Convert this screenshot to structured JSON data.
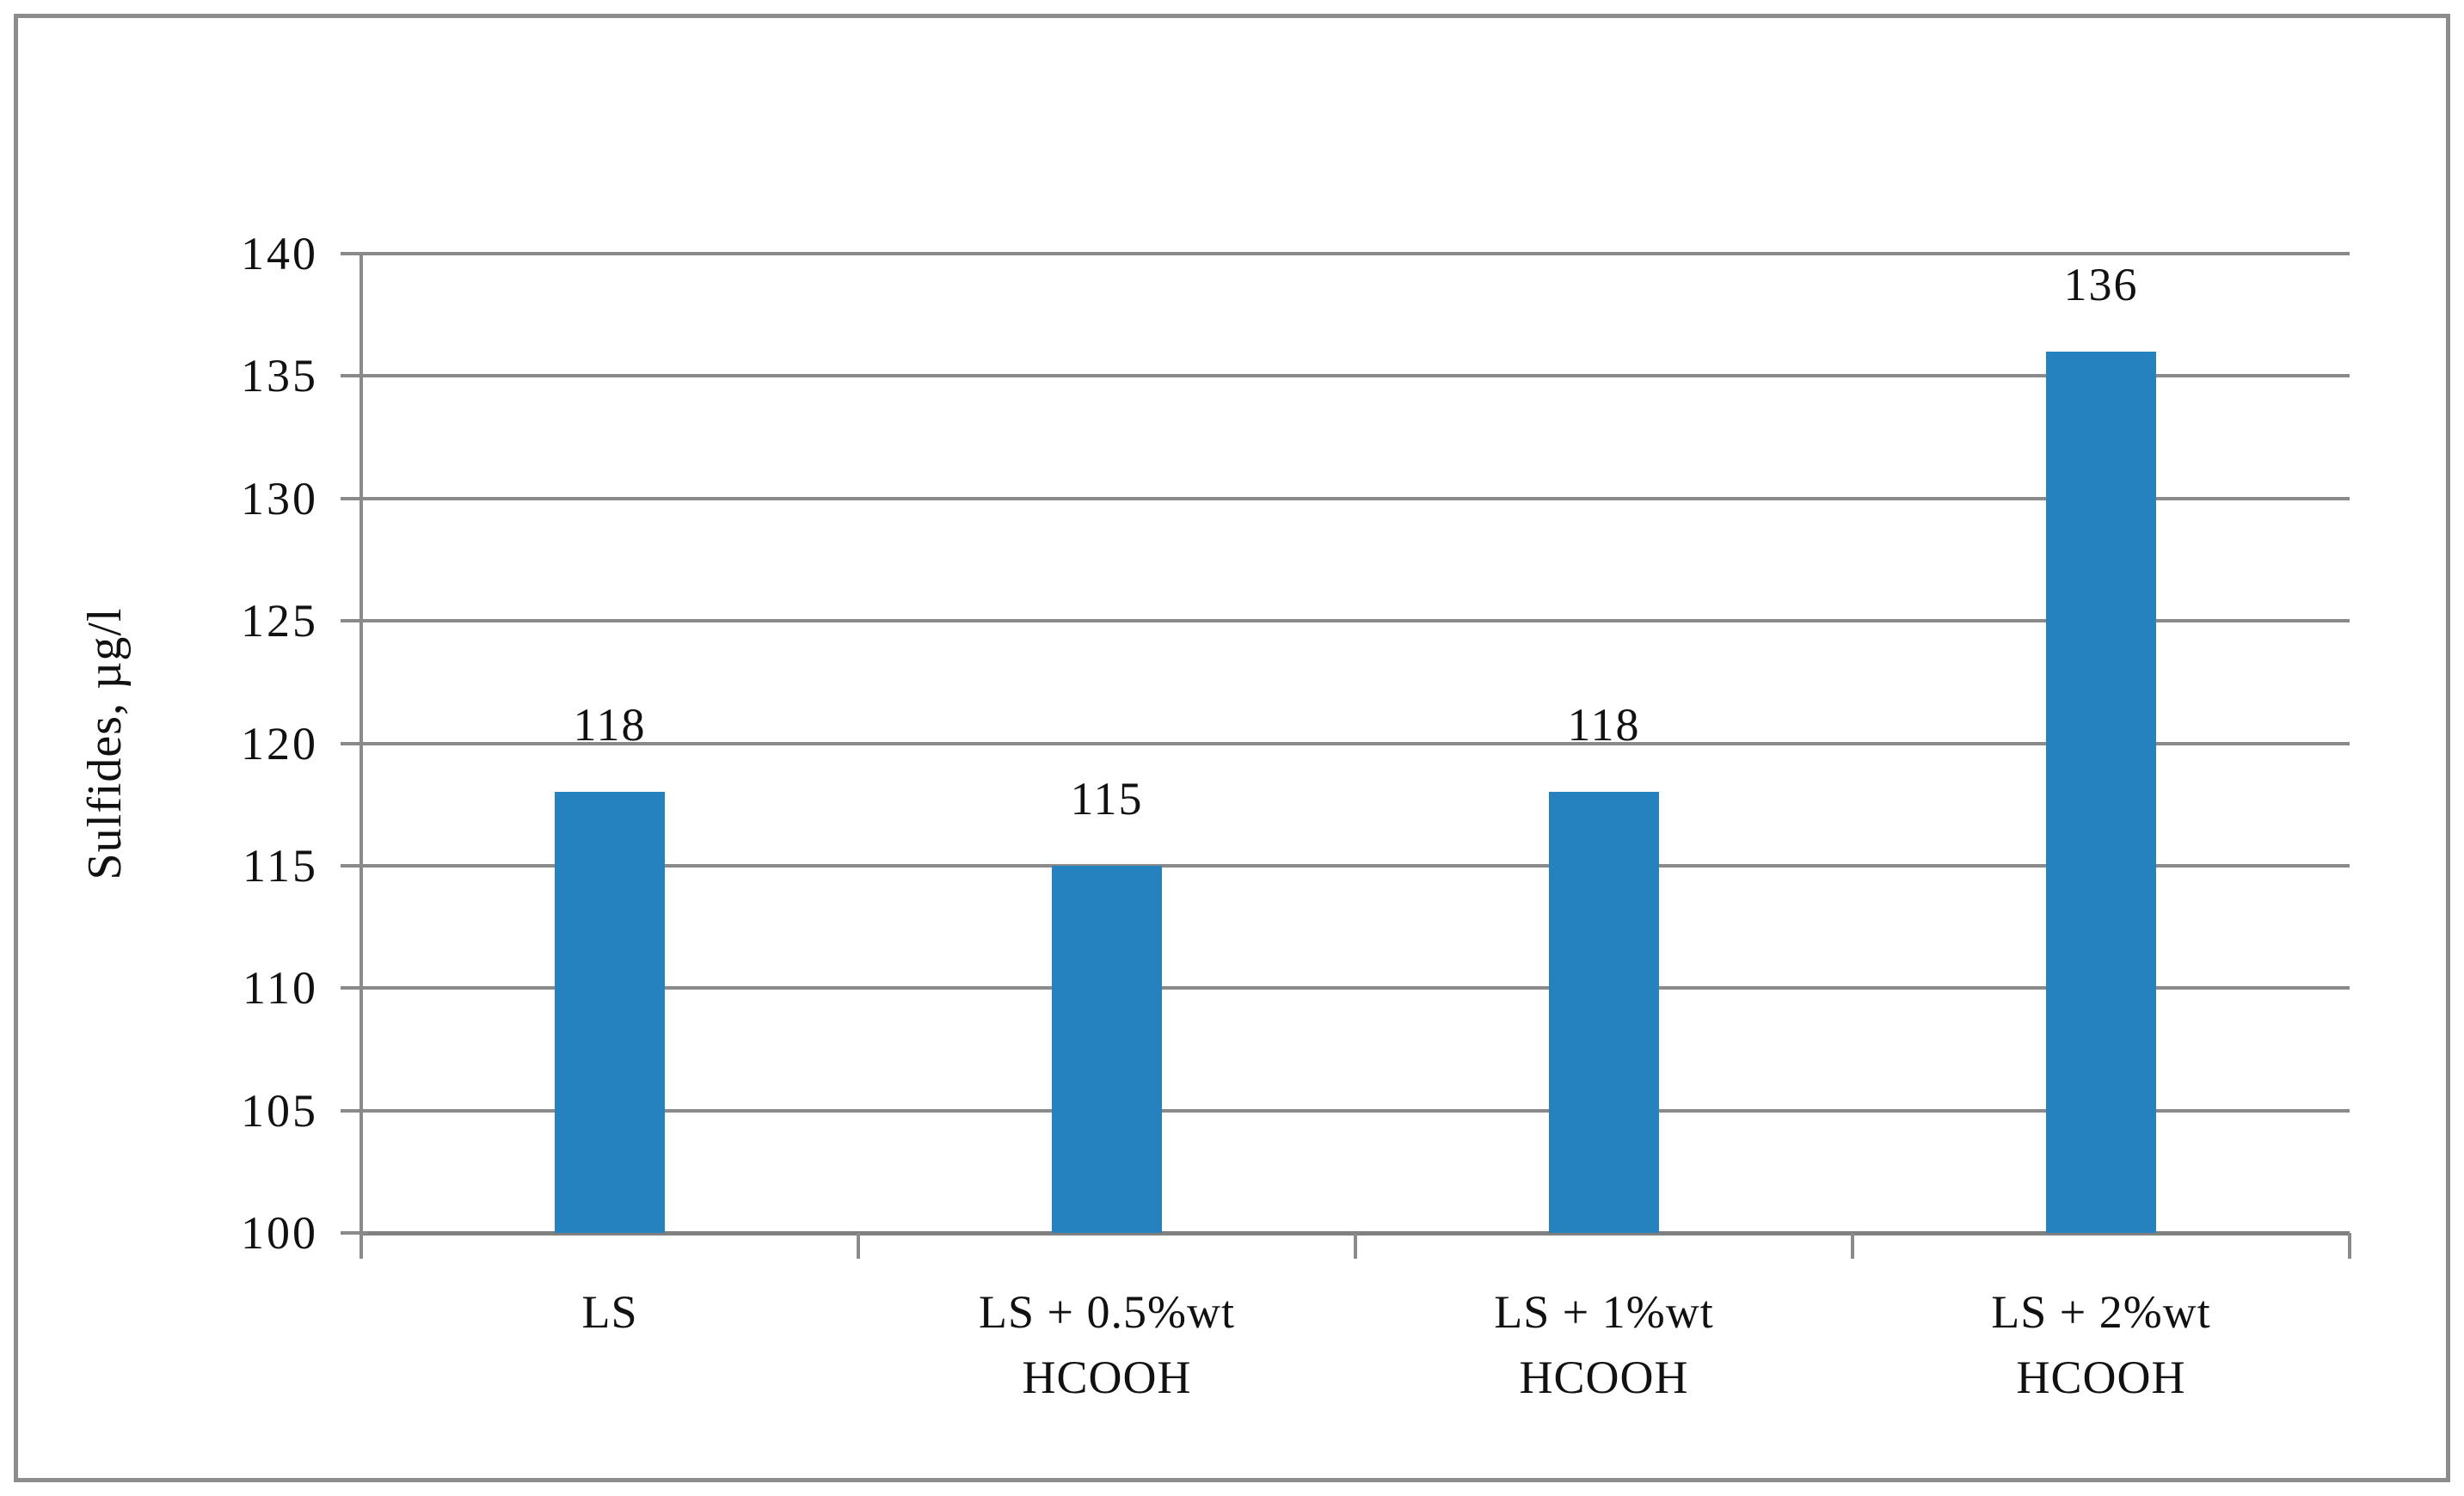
{
  "figure": {
    "background_color": "#ffffff",
    "border_color": "#8c8c8c",
    "text_color": "#111111"
  },
  "chart_data": {
    "type": "bar",
    "title": "",
    "xlabel": "",
    "ylabel": "Sulfides, µg/l",
    "categories": [
      "LS",
      "LS + 0.5%wt\nHCOOH",
      "LS + 1%wt\nHCOOH",
      "LS + 2%wt\nHCOOH"
    ],
    "values": [
      118,
      115,
      118,
      136
    ],
    "data_labels": [
      "118",
      "115",
      "118",
      "136"
    ],
    "ylim": [
      100,
      140
    ],
    "yticks": [
      100,
      105,
      110,
      115,
      120,
      125,
      130,
      135,
      140
    ],
    "ytick_labels": [
      "100",
      "105",
      "110",
      "115",
      "120",
      "125",
      "130",
      "135",
      "140"
    ],
    "grid": "horizontal",
    "legend_position": "none",
    "bar_color": "#2681BF",
    "gridline_color": "#8a8a8a",
    "axis_color": "#808080"
  }
}
